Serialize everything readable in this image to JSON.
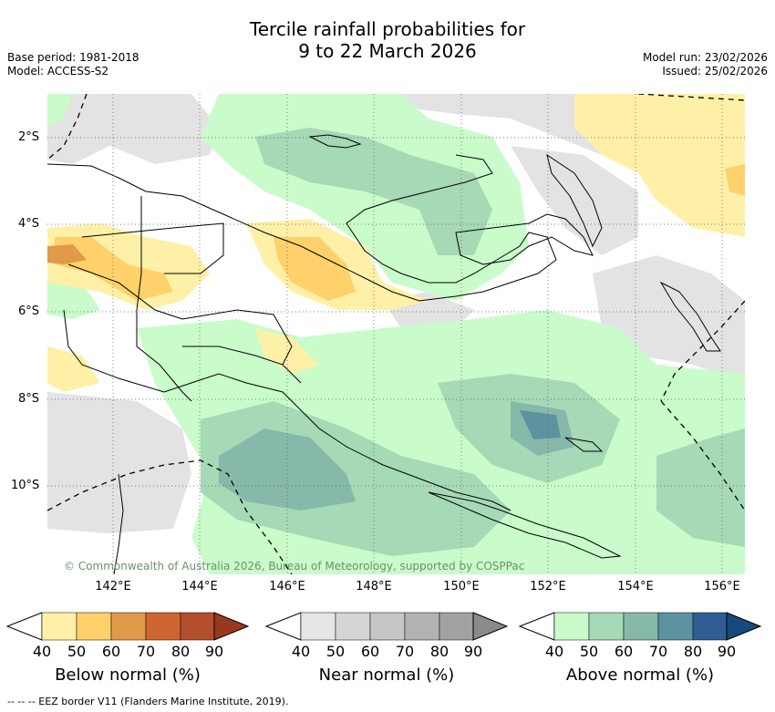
{
  "title": {
    "line1": "Tercile rainfall probabilities for",
    "line2": "9 to 22 March 2026"
  },
  "meta_left": {
    "base_period": "Base period: 1981-2018",
    "model": "Model: ACCESS-S2"
  },
  "meta_right": {
    "model_run": "Model run: 23/02/2026",
    "issued": "Issued: 25/02/2026"
  },
  "lat_ticks": [
    "2°S",
    "4°S",
    "6°S",
    "8°S",
    "10°S"
  ],
  "lon_ticks": [
    "142°E",
    "144°E",
    "146°E",
    "148°E",
    "150°E",
    "152°E",
    "154°E",
    "156°E"
  ],
  "credit": "© Commonwealth of Australia 2026, Bureau of Meteorology, supported by COSPPac",
  "legends": [
    {
      "title": "Below normal (%)",
      "labels": [
        "40",
        "50",
        "60",
        "70",
        "80",
        "90"
      ],
      "colors": [
        "#fff0a8",
        "#fed16b",
        "#e09a4a",
        "#cf6433",
        "#b34f2c",
        "#98391f"
      ]
    },
    {
      "title": "Near normal (%)",
      "labels": [
        "40",
        "50",
        "60",
        "70",
        "80",
        "90"
      ],
      "colors": [
        "#e6e6e6",
        "#d5d5d5",
        "#c6c6c6",
        "#b3b3b3",
        "#a2a2a2",
        "#8a8a8a"
      ]
    },
    {
      "title": "Above normal (%)",
      "labels": [
        "40",
        "50",
        "60",
        "70",
        "80",
        "90"
      ],
      "colors": [
        "#c9fcca",
        "#a6d9b6",
        "#86b9aa",
        "#5d93a1",
        "#2f5e94",
        "#164a7d"
      ]
    }
  ],
  "footer": "--  --  -- EEZ border V11 (Flanders Marine Institute, 2019).",
  "colors": {
    "land_line": "#000000",
    "grid": "#555555"
  }
}
